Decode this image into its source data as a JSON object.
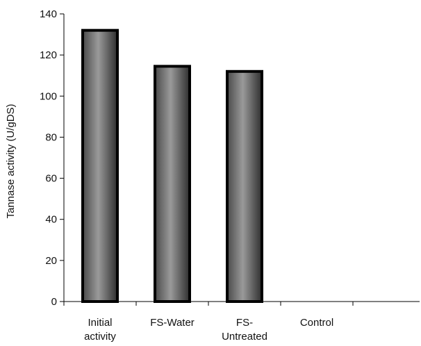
{
  "chart_data": {
    "type": "bar",
    "title": "",
    "xlabel": "",
    "ylabel": "Tannase activity (U/gDS)",
    "ylim": [
      0,
      140
    ],
    "yticks": [
      0,
      20,
      40,
      60,
      80,
      100,
      120,
      140
    ],
    "categories": [
      [
        "Initial",
        "activity"
      ],
      [
        "FS-Water"
      ],
      [
        "FS-",
        "Untreated"
      ],
      [
        "Control"
      ]
    ],
    "values": [
      132,
      114.5,
      112,
      0
    ],
    "grid": false,
    "legend": "none",
    "colors": {
      "bar_dark": "#2a2a2a",
      "bar_mid": "#8a8a8a",
      "bar_outline": "#000000",
      "axis": "#000000"
    }
  }
}
